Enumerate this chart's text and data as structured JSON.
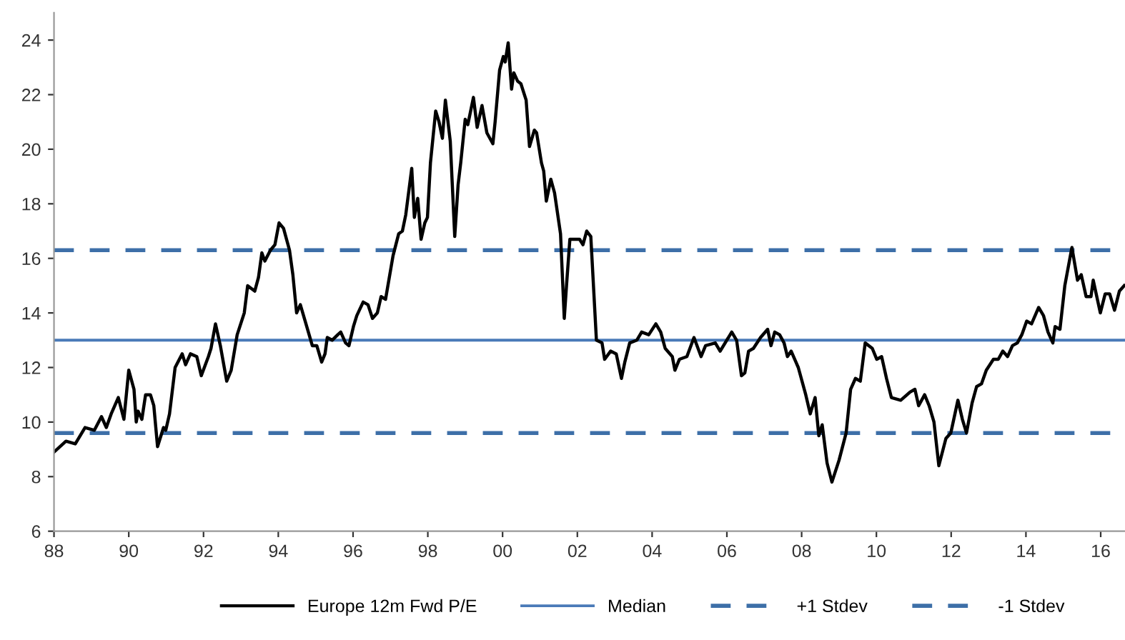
{
  "chart_data": {
    "type": "line",
    "x": [
      1988.0,
      1988.32,
      1988.57,
      1988.83,
      1989.08,
      1989.27,
      1989.4,
      1989.53,
      1989.72,
      1989.87,
      1990.0,
      1990.14,
      1990.2,
      1990.25,
      1990.35,
      1990.45,
      1990.58,
      1990.67,
      1990.77,
      1990.93,
      1990.99,
      1991.09,
      1991.24,
      1991.43,
      1991.52,
      1991.65,
      1991.82,
      1991.94,
      1992.13,
      1992.2,
      1992.32,
      1992.45,
      1992.62,
      1992.74,
      1992.9,
      1993.09,
      1993.18,
      1993.37,
      1993.47,
      1993.56,
      1993.64,
      1993.79,
      1993.91,
      1994.02,
      1994.14,
      1994.3,
      1994.39,
      1994.49,
      1994.59,
      1994.74,
      1994.91,
      1995.03,
      1995.16,
      1995.25,
      1995.31,
      1995.44,
      1995.59,
      1995.67,
      1995.8,
      1995.89,
      1996.01,
      1996.1,
      1996.27,
      1996.4,
      1996.52,
      1996.65,
      1996.75,
      1996.87,
      1997.07,
      1997.22,
      1997.32,
      1997.41,
      1997.57,
      1997.64,
      1997.73,
      1997.82,
      1997.92,
      1997.99,
      1998.07,
      1998.21,
      1998.3,
      1998.39,
      1998.47,
      1998.6,
      1998.72,
      1998.81,
      1998.88,
      1999.0,
      1999.07,
      1999.22,
      1999.32,
      1999.45,
      1999.58,
      1999.74,
      1999.8,
      1999.92,
      2000.02,
      2000.07,
      2000.15,
      2000.24,
      2000.3,
      2000.4,
      2000.49,
      2000.63,
      2000.72,
      2000.85,
      2000.91,
      2001.04,
      2001.1,
      2001.17,
      2001.29,
      2001.39,
      2001.55,
      2001.65,
      2001.71,
      2001.8,
      2002.06,
      2002.15,
      2002.25,
      2002.36,
      2002.51,
      2002.66,
      2002.73,
      2002.89,
      2003.04,
      2003.18,
      2003.27,
      2003.4,
      2003.59,
      2003.72,
      2003.91,
      2004.1,
      2004.23,
      2004.35,
      2004.54,
      2004.61,
      2004.73,
      2004.93,
      2005.12,
      2005.31,
      2005.43,
      2005.69,
      2005.82,
      2006.13,
      2006.26,
      2006.39,
      2006.48,
      2006.58,
      2006.71,
      2006.9,
      2007.09,
      2007.18,
      2007.28,
      2007.41,
      2007.53,
      2007.62,
      2007.72,
      2007.91,
      2008.11,
      2008.23,
      2008.36,
      2008.46,
      2008.55,
      2008.68,
      2008.81,
      2009.0,
      2009.19,
      2009.31,
      2009.44,
      2009.57,
      2009.7,
      2009.89,
      2010.01,
      2010.14,
      2010.27,
      2010.4,
      2010.65,
      2010.9,
      2011.03,
      2011.13,
      2011.29,
      2011.41,
      2011.54,
      2011.67,
      2011.86,
      2011.99,
      2012.18,
      2012.3,
      2012.41,
      2012.56,
      2012.68,
      2012.81,
      2012.94,
      2013.13,
      2013.26,
      2013.38,
      2013.51,
      2013.64,
      2013.77,
      2013.89,
      2014.02,
      2014.15,
      2014.34,
      2014.47,
      2014.59,
      2014.72,
      2014.78,
      2014.91,
      2015.04,
      2015.23,
      2015.38,
      2015.48,
      2015.61,
      2015.74,
      2015.8,
      2015.99,
      2016.12,
      2016.24,
      2016.37,
      2016.5,
      2016.63
    ],
    "series": [
      {
        "name": "Europe 12m Fwd P/E",
        "color": "#000000",
        "values": [
          8.9,
          9.3,
          9.2,
          9.8,
          9.7,
          10.2,
          9.8,
          10.3,
          10.9,
          10.1,
          11.9,
          11.2,
          10.0,
          10.4,
          10.1,
          11.0,
          11.0,
          10.6,
          9.1,
          9.8,
          9.7,
          10.3,
          12.0,
          12.5,
          12.1,
          12.5,
          12.4,
          11.7,
          12.4,
          12.7,
          13.6,
          12.8,
          11.5,
          11.9,
          13.2,
          14.0,
          15.0,
          14.8,
          15.3,
          16.2,
          15.9,
          16.3,
          16.5,
          17.3,
          17.1,
          16.3,
          15.4,
          14.0,
          14.3,
          13.6,
          12.8,
          12.8,
          12.2,
          12.5,
          13.1,
          13.0,
          13.2,
          13.3,
          12.9,
          12.8,
          13.5,
          13.9,
          14.4,
          14.3,
          13.8,
          14.0,
          14.6,
          14.5,
          16.1,
          16.9,
          17.0,
          17.6,
          19.3,
          17.5,
          18.2,
          16.7,
          17.3,
          17.5,
          19.5,
          21.4,
          21.0,
          20.4,
          21.8,
          20.3,
          16.8,
          18.7,
          19.5,
          21.1,
          20.9,
          21.9,
          20.8,
          21.6,
          20.6,
          20.2,
          21.0,
          22.9,
          23.4,
          23.2,
          23.9,
          22.2,
          22.8,
          22.5,
          22.4,
          21.8,
          20.1,
          20.7,
          20.6,
          19.5,
          19.2,
          18.1,
          18.9,
          18.4,
          16.9,
          13.8,
          15.0,
          16.7,
          16.7,
          16.5,
          17.0,
          16.8,
          13.0,
          12.9,
          12.3,
          12.6,
          12.5,
          11.6,
          12.2,
          12.9,
          13.0,
          13.3,
          13.2,
          13.6,
          13.3,
          12.7,
          12.4,
          11.9,
          12.3,
          12.4,
          13.1,
          12.4,
          12.8,
          12.9,
          12.6,
          13.3,
          13.0,
          11.7,
          11.8,
          12.6,
          12.7,
          13.1,
          13.4,
          12.8,
          13.3,
          13.2,
          12.9,
          12.4,
          12.6,
          12.0,
          11.0,
          10.3,
          10.9,
          9.5,
          9.9,
          8.5,
          7.8,
          8.6,
          9.6,
          11.2,
          11.6,
          11.5,
          12.9,
          12.7,
          12.3,
          12.4,
          11.6,
          10.9,
          10.8,
          11.1,
          11.2,
          10.6,
          11.0,
          10.6,
          10.0,
          8.4,
          9.4,
          9.6,
          10.8,
          10.1,
          9.6,
          10.7,
          11.3,
          11.4,
          11.9,
          12.3,
          12.3,
          12.6,
          12.4,
          12.8,
          12.9,
          13.2,
          13.7,
          13.6,
          14.2,
          13.9,
          13.3,
          12.9,
          13.5,
          13.4,
          15.0,
          16.4,
          15.2,
          15.4,
          14.6,
          14.6,
          15.2,
          14.0,
          14.7,
          14.7,
          14.1,
          14.8,
          15.0
        ]
      }
    ],
    "ref_lines": [
      {
        "axis": "y",
        "value": 13.0,
        "label": "Median",
        "color": "#4a7ab8",
        "line_style": "solid"
      },
      {
        "axis": "y",
        "value": 16.3,
        "label": "+1 Stdev",
        "color": "#3d6fa8",
        "line_style": "dashed"
      },
      {
        "axis": "y",
        "value": 9.6,
        "label": "-1 Stdev",
        "color": "#3d6fa8",
        "line_style": "dashed"
      }
    ],
    "xlim": [
      1988,
      2016.65
    ],
    "xticks": [
      {
        "value": 1988,
        "label": "88"
      },
      {
        "value": 1990,
        "label": "90"
      },
      {
        "value": 1992,
        "label": "92"
      },
      {
        "value": 1994,
        "label": "94"
      },
      {
        "value": 1996,
        "label": "96"
      },
      {
        "value": 1998,
        "label": "98"
      },
      {
        "value": 2000,
        "label": "00"
      },
      {
        "value": 2002,
        "label": "02"
      },
      {
        "value": 2004,
        "label": "04"
      },
      {
        "value": 2006,
        "label": "06"
      },
      {
        "value": 2008,
        "label": "08"
      },
      {
        "value": 2010,
        "label": "10"
      },
      {
        "value": 2012,
        "label": "12"
      },
      {
        "value": 2014,
        "label": "14"
      },
      {
        "value": 2016,
        "label": "16"
      }
    ],
    "ylim": [
      6,
      25
    ],
    "yticks": [
      6,
      8,
      10,
      12,
      14,
      16,
      18,
      20,
      22,
      24
    ],
    "grid": false,
    "legend": "bottom",
    "marker": "none",
    "line_style": "solid"
  }
}
